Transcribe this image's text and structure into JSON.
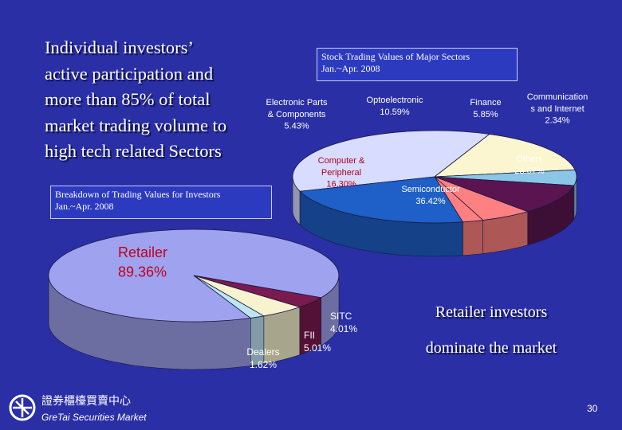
{
  "headline": "Individual investors’\nactive participation and\nmore than 85% of total\nmarket trading volume to\nhigh tech related Sectors",
  "conclusion": {
    "line1": "Retailer investors",
    "line2": "dominate the market"
  },
  "page_number": "30",
  "logo": {
    "chinese_text": "證券櫃檯買賣中心",
    "english_text": "GreTai Securities Market"
  },
  "chart_data": [
    {
      "type": "pie",
      "title": "Stock Trading Values of Major Sectors\nJan.~Apr. 2008",
      "slices": [
        {
          "name": "Semiconductor",
          "value": 36.42,
          "label": "36.42%",
          "color": "#d8dcff"
        },
        {
          "name": "Computer & Peripheral",
          "value": 16.3,
          "label": "16.30%",
          "color": "#fbf6cf"
        },
        {
          "name": "Electronic Parts & Components",
          "value": 5.43,
          "label": "5.43%",
          "color": "#8bc6e6"
        },
        {
          "name": "Optoelectronic",
          "value": 10.59,
          "label": "10.59%",
          "color": "#5a1450"
        },
        {
          "name": "Finance",
          "value": 5.85,
          "label": "5.85%",
          "color": "#ff8080"
        },
        {
          "name": "Communications and Internet",
          "value": 2.34,
          "label": "2.34%",
          "color": "#ff8080"
        },
        {
          "name": "Others",
          "value": 23.07,
          "label": "23.07%",
          "color": "#1e5fc8"
        }
      ],
      "labels": [
        {
          "slice": "Semiconductor",
          "lines": [
            "Semiconductor",
            "36.42%"
          ],
          "color": "#ffffff"
        },
        {
          "slice": "Computer & Peripheral",
          "lines": [
            "Computer &",
            "Peripheral",
            "16.30%"
          ],
          "color": "#b0001e"
        },
        {
          "slice": "Electronic Parts & Components",
          "lines": [
            "Electronic Parts",
            "& Components",
            "5.43%"
          ],
          "color": "#ffffff"
        },
        {
          "slice": "Optoelectronic",
          "lines": [
            "Optoelectronic",
            "10.59%"
          ],
          "color": "#ffffff"
        },
        {
          "slice": "Finance",
          "lines": [
            "Finance",
            "5.85%"
          ],
          "color": "#ffffff"
        },
        {
          "slice": "Communications and Internet",
          "lines": [
            "Communication",
            "s and Internet",
            "2.34%"
          ],
          "color": "#ffffff"
        },
        {
          "slice": "Others",
          "lines": [
            "Others",
            "23.07%"
          ],
          "color": "#ffffff"
        }
      ]
    },
    {
      "type": "pie",
      "title": "Breakdown of Trading Values for Investors\nJan.~Apr. 2008",
      "slices": [
        {
          "name": "Retailer",
          "value": 89.36,
          "label": "89.36%",
          "color": "#9fa2ee"
        },
        {
          "name": "Dealers",
          "value": 1.62,
          "label": "1.62%",
          "color": "#bde6f5"
        },
        {
          "name": "FII",
          "value": 5.01,
          "label": "5.01%",
          "color": "#f7f3cf"
        },
        {
          "name": "SITC",
          "value": 4.01,
          "label": "4.01%",
          "color": "#7a1a4e"
        }
      ],
      "labels": [
        {
          "slice": "Retailer",
          "lines": [
            "Retailer",
            "89.36%"
          ],
          "color": "#c0001e"
        },
        {
          "slice": "SITC",
          "lines": [
            "SITC",
            "4.01%"
          ],
          "color": "#ffffff"
        },
        {
          "slice": "FII",
          "lines": [
            "FII",
            "5.01%"
          ],
          "color": "#ffffff"
        },
        {
          "slice": "Dealers",
          "lines": [
            "Dealers",
            "1.62%"
          ],
          "color": "#ffffff"
        }
      ]
    }
  ]
}
